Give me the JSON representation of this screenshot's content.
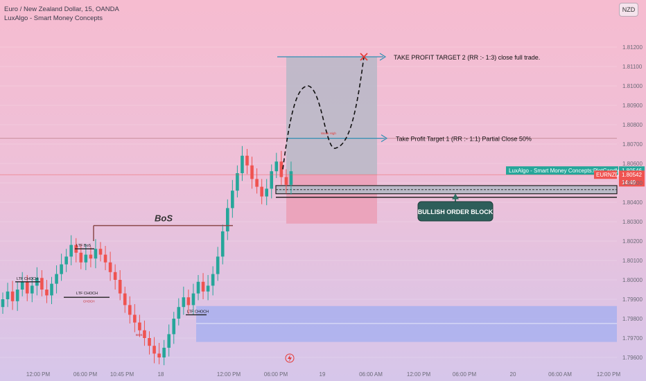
{
  "header": {
    "symbol_line": "Euro / New Zealand Dollar, 15, OANDA",
    "indicator_line": "LuxAlgo - Smart Money Concepts"
  },
  "currency_button": "NZD",
  "colors": {
    "bull_candle": "#26a69a",
    "bear_candle": "#ef5350",
    "target_line": "#2f8fb3",
    "ob_zone": "#b7b9c7",
    "stop_zone": "#eba1b8",
    "demand_zone": "#a9b0ee",
    "price_tag": "#ef5350",
    "indicator_tag": "#26a69a"
  },
  "chart_data": {
    "type": "candlestick",
    "ylim": [
      1.7955,
      1.813
    ],
    "y_ticks": [
      "1.81200",
      "1.81100",
      "1.81000",
      "1.80900",
      "1.80800",
      "1.80700",
      "1.80600",
      "1.80500",
      "1.80400",
      "1.80300",
      "1.80200",
      "1.80100",
      "1.80000",
      "1.79900",
      "1.79800",
      "1.79700",
      "1.79600"
    ],
    "x_ticks": [
      "12:00 PM",
      "06:00 PM",
      "10:45 PM",
      "18",
      "12:00 PM",
      "06:00 PM",
      "19",
      "06:00 AM",
      "12:00 PM",
      "06:00 PM",
      "20",
      "06:00 AM",
      "12:00 PM"
    ],
    "candles_close": [
      1.799,
      1.7994,
      1.7989,
      1.7995,
      1.7999,
      1.7993,
      1.7997,
      1.8001,
      1.7995,
      1.7992,
      1.7998,
      1.8003,
      1.8008,
      1.8012,
      1.8018,
      1.8014,
      1.8009,
      1.8013,
      1.8011,
      1.8016,
      1.8013,
      1.8009,
      1.8004,
      1.8,
      1.7993,
      1.7987,
      1.7982,
      1.7978,
      1.7974,
      1.797,
      1.7966,
      1.7962,
      1.796,
      1.7965,
      1.7972,
      1.798,
      1.7986,
      1.7991,
      1.7987,
      1.7993,
      1.7999,
      1.7994,
      1.7997,
      1.8003,
      1.8012,
      1.8025,
      1.8037,
      1.8046,
      1.8055,
      1.8064,
      1.8059,
      1.8052,
      1.8048,
      1.8043,
      1.8047,
      1.8056,
      1.8061,
      1.8053,
      1.8049,
      1.8056
    ],
    "price_scale_tags": [
      {
        "label": "LuxAlgo - Smart Money Concepts:PlotCandle",
        "value": "1.80546"
      },
      {
        "label": "EURNZD",
        "value": "1.80542",
        "countdown": "14:49"
      }
    ],
    "levels": [
      {
        "name": "Take profit target 2",
        "value": 1.8115
      },
      {
        "name": "Take profit target 1",
        "value": 1.8073
      },
      {
        "name": "Current price",
        "value": 1.80542
      }
    ],
    "zones": [
      {
        "name": "Take profit box",
        "top": 1.8115,
        "bottom": 1.80542
      },
      {
        "name": "Stop loss box",
        "top": 1.80542,
        "bottom": 1.8029
      },
      {
        "name": "Bullish order block",
        "top": 1.80486,
        "bottom": 1.80444
      },
      {
        "name": "Demand zone",
        "top": 1.79865,
        "bottom": 1.7968
      }
    ],
    "annotations": {
      "tp2": "TAKE PROFIT TARGET 2 (RR :- 1:3) close full trade.",
      "tp1": "Take Profit Target 1 (RR :- 1:1) Partial Close 50%",
      "order_block": "BULLISH ORDER BLOCK",
      "bos_main": "BoS",
      "weak_high": "Weak High",
      "ltf_choch_1": "LTF CHOCH",
      "ltf_choch_2": "LTF CHOCH",
      "ltf_choch_3": "LTF CHOCH",
      "ltf_bos": "LTF BoS",
      "choch_small": "CHOCH",
      "bos_small": "BOS"
    }
  }
}
